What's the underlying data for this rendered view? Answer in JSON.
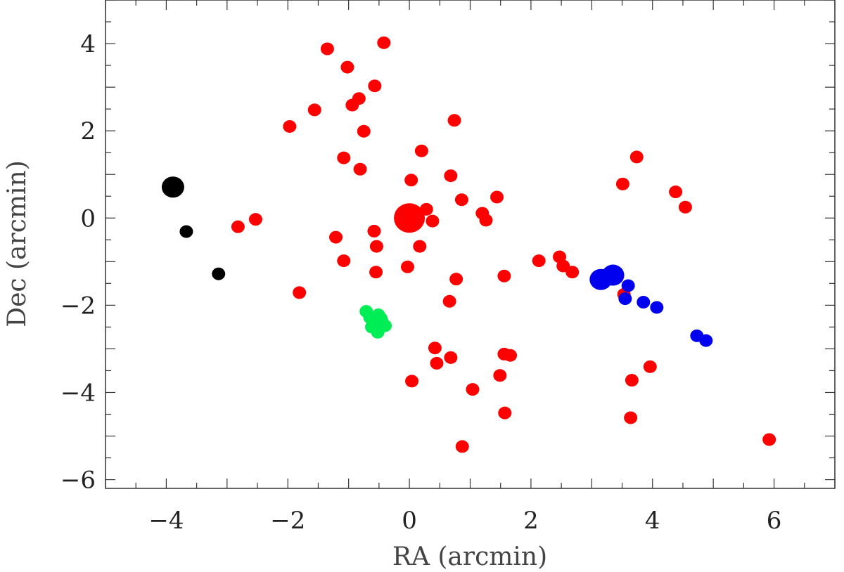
{
  "chart_data": {
    "type": "scatter",
    "title": "",
    "xlabel": "RA (arcmin)",
    "ylabel": "Dec (arcmin)",
    "xlim": [
      -5,
      7
    ],
    "ylim": [
      -6.2,
      5
    ],
    "x_ticks": [
      -4,
      -2,
      0,
      2,
      4,
      6
    ],
    "x_tick_labels": [
      "−4",
      "−2",
      "0",
      "2",
      "4",
      "6"
    ],
    "y_ticks": [
      -6,
      -4,
      -2,
      0,
      2,
      4
    ],
    "y_tick_labels": [
      "−6",
      "−4",
      "−2",
      "0",
      "2",
      "4"
    ],
    "grid": false,
    "legend": "none",
    "series": [
      {
        "color": "#ff0000",
        "points": [
          [
            0.0,
            0.0,
            "large"
          ],
          [
            -0.42,
            4.02
          ],
          [
            -1.35,
            3.88
          ],
          [
            -1.02,
            3.46
          ],
          [
            -0.57,
            3.03
          ],
          [
            -0.83,
            2.74
          ],
          [
            -0.94,
            2.59
          ],
          [
            -1.56,
            2.48
          ],
          [
            -1.97,
            2.1
          ],
          [
            -0.75,
            1.99
          ],
          [
            0.74,
            2.24
          ],
          [
            0.2,
            1.54
          ],
          [
            -1.08,
            1.38
          ],
          [
            -0.81,
            1.12
          ],
          [
            0.68,
            0.97
          ],
          [
            0.03,
            0.87
          ],
          [
            -2.82,
            -0.2
          ],
          [
            -2.53,
            -0.03
          ],
          [
            0.28,
            0.2
          ],
          [
            0.38,
            -0.07
          ],
          [
            0.86,
            0.42
          ],
          [
            1.44,
            0.48
          ],
          [
            1.2,
            0.11
          ],
          [
            1.26,
            -0.05
          ],
          [
            -0.58,
            -0.3
          ],
          [
            -1.21,
            -0.44
          ],
          [
            -0.54,
            -0.65
          ],
          [
            0.17,
            -0.65
          ],
          [
            -1.08,
            -0.98
          ],
          [
            -0.55,
            -1.24
          ],
          [
            -0.03,
            -1.12
          ],
          [
            0.77,
            -1.4
          ],
          [
            1.56,
            -1.33
          ],
          [
            2.13,
            -0.98
          ],
          [
            2.47,
            -0.89
          ],
          [
            2.53,
            -1.1
          ],
          [
            2.68,
            -1.24
          ],
          [
            -1.81,
            -1.71
          ],
          [
            0.66,
            -1.91
          ],
          [
            3.53,
            -1.75
          ],
          [
            3.74,
            1.4
          ],
          [
            3.51,
            0.78
          ],
          [
            4.38,
            0.6
          ],
          [
            4.54,
            0.25
          ],
          [
            0.42,
            -2.98
          ],
          [
            0.45,
            -3.33
          ],
          [
            0.68,
            -3.2
          ],
          [
            1.56,
            -3.12
          ],
          [
            1.66,
            -3.15
          ],
          [
            0.04,
            -3.74
          ],
          [
            1.49,
            -3.61
          ],
          [
            1.04,
            -3.93
          ],
          [
            3.96,
            -3.41
          ],
          [
            3.66,
            -3.72
          ],
          [
            1.57,
            -4.47
          ],
          [
            3.64,
            -4.58
          ],
          [
            0.87,
            -5.24
          ],
          [
            5.92,
            -5.08
          ]
        ]
      },
      {
        "color": "#00ee55",
        "points": [
          [
            -0.71,
            -2.14
          ],
          [
            -0.65,
            -2.28
          ],
          [
            -0.58,
            -2.39
          ],
          [
            -0.51,
            -2.22
          ],
          [
            -0.45,
            -2.38
          ],
          [
            -0.62,
            -2.5
          ],
          [
            -0.54,
            -2.55
          ],
          [
            -0.4,
            -2.47
          ],
          [
            -0.52,
            -2.62
          ],
          [
            -0.47,
            -2.3
          ]
        ]
      },
      {
        "color": "#0000ee",
        "points": [
          [
            3.15,
            -1.41,
            "large"
          ],
          [
            3.35,
            -1.31,
            "large"
          ],
          [
            3.6,
            -1.55
          ],
          [
            3.55,
            -1.85
          ],
          [
            3.85,
            -1.93
          ],
          [
            4.07,
            -2.05
          ],
          [
            4.73,
            -2.7
          ],
          [
            4.88,
            -2.81
          ]
        ]
      },
      {
        "color": "#000000",
        "points": [
          [
            -3.89,
            0.71,
            "large"
          ],
          [
            -3.67,
            -0.31
          ],
          [
            -3.14,
            -1.28
          ]
        ]
      }
    ]
  }
}
